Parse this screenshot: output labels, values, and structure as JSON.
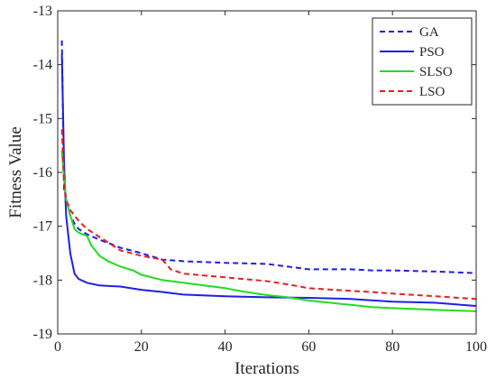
{
  "chart_data": {
    "type": "line",
    "title": "",
    "xlabel": "Iterations",
    "ylabel": "Fitness Value",
    "xlim": [
      0,
      100
    ],
    "ylim": [
      -19,
      -13
    ],
    "x_ticks": [
      "0",
      "20",
      "40",
      "60",
      "80",
      "100"
    ],
    "y_ticks": [
      "-13",
      "-14",
      "-15",
      "-16",
      "-17",
      "-18",
      "-19"
    ],
    "grid": false,
    "legend_position": "top-right",
    "series": [
      {
        "name": "GA",
        "color": "#1f1fe6",
        "dash": "dashed",
        "x": [
          1,
          1.5,
          2,
          3,
          4,
          5,
          7,
          10,
          15,
          20,
          25,
          30,
          40,
          50,
          55,
          60,
          70,
          75,
          80,
          90,
          100
        ],
        "y": [
          -13.55,
          -16.3,
          -16.5,
          -16.8,
          -16.95,
          -17.05,
          -17.15,
          -17.25,
          -17.4,
          -17.5,
          -17.62,
          -17.65,
          -17.68,
          -17.7,
          -17.75,
          -17.8,
          -17.8,
          -17.82,
          -17.82,
          -17.84,
          -17.87
        ]
      },
      {
        "name": "PSO",
        "color": "#1f1fe6",
        "dash": "solid",
        "x": [
          1,
          1.5,
          2,
          3,
          4,
          5,
          7,
          10,
          15,
          20,
          25,
          30,
          40,
          50,
          60,
          70,
          80,
          90,
          100
        ],
        "y": [
          -13.8,
          -15.8,
          -16.8,
          -17.5,
          -17.88,
          -17.98,
          -18.05,
          -18.1,
          -18.12,
          -18.18,
          -18.22,
          -18.27,
          -18.3,
          -18.32,
          -18.33,
          -18.35,
          -18.4,
          -18.42,
          -18.48
        ]
      },
      {
        "name": "SLSO",
        "color": "#20dd20",
        "dash": "solid",
        "x": [
          1,
          1.5,
          2,
          3,
          4,
          5,
          7,
          8,
          10,
          12,
          15,
          18,
          20,
          25,
          30,
          35,
          40,
          45,
          50,
          55,
          60,
          65,
          70,
          75,
          80,
          90,
          100
        ],
        "y": [
          -15.6,
          -16.1,
          -16.5,
          -16.8,
          -17.05,
          -17.12,
          -17.18,
          -17.35,
          -17.55,
          -17.65,
          -17.75,
          -17.82,
          -17.9,
          -18.0,
          -18.05,
          -18.1,
          -18.15,
          -18.22,
          -18.28,
          -18.32,
          -18.38,
          -18.42,
          -18.46,
          -18.5,
          -18.52,
          -18.55,
          -18.58
        ]
      },
      {
        "name": "LSO",
        "color": "#e62020",
        "dash": "dashed",
        "x": [
          1,
          1.5,
          2,
          3,
          4,
          5,
          7,
          10,
          15,
          20,
          25,
          27,
          30,
          40,
          50,
          55,
          60,
          70,
          75,
          80,
          90,
          100
        ],
        "y": [
          -15.2,
          -16.2,
          -16.5,
          -16.7,
          -16.8,
          -16.9,
          -17.05,
          -17.2,
          -17.45,
          -17.55,
          -17.62,
          -17.8,
          -17.88,
          -17.95,
          -18.02,
          -18.08,
          -18.15,
          -18.2,
          -18.22,
          -18.25,
          -18.3,
          -18.35
        ]
      }
    ]
  }
}
